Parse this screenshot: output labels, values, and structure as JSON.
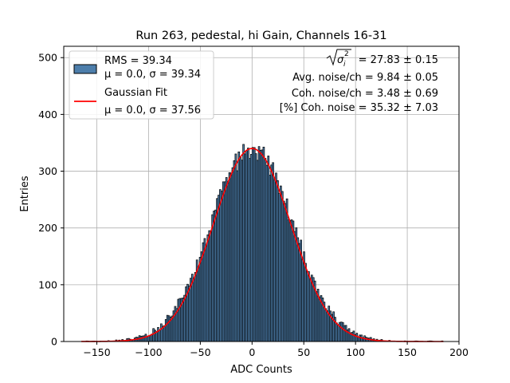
{
  "chart_data": {
    "type": "bar",
    "title": "Run 263, pedestal, hi Gain, Channels 16-31",
    "xlabel": "ADC Counts",
    "ylabel": "Entries",
    "xlim": [
      -182,
      200
    ],
    "ylim": [
      0,
      520
    ],
    "xticks": [
      -150,
      -100,
      -50,
      0,
      50,
      100,
      150,
      200
    ],
    "yticks": [
      0,
      100,
      200,
      300,
      400,
      500
    ],
    "grid": true,
    "legend_position": "top-left",
    "histogram": {
      "name": "RMS = 39.34",
      "detail": "μ = 0.0, σ = 39.34",
      "color": "#4d7eab",
      "edge_color": "#000000",
      "bin_width": 1.5,
      "range": [
        -165,
        185
      ],
      "mu": 0.0,
      "sigma": 39.34,
      "peak": 340
    },
    "fit": {
      "name": "Gaussian Fit",
      "detail": "μ = 0.0, σ = 37.56",
      "color": "#ff0000",
      "mu": 0.0,
      "sigma": 37.56,
      "amplitude": 340,
      "range": [
        -165,
        185
      ]
    },
    "annotations": {
      "line1_value": "= 27.83 ± 0.15",
      "line2": "Avg. noise/ch = 9.84 ± 0.05",
      "line3": "Coh. noise/ch = 3.48 ± 0.69",
      "line4": "[%] Coh. noise = 35.32 ± 7.03"
    }
  }
}
